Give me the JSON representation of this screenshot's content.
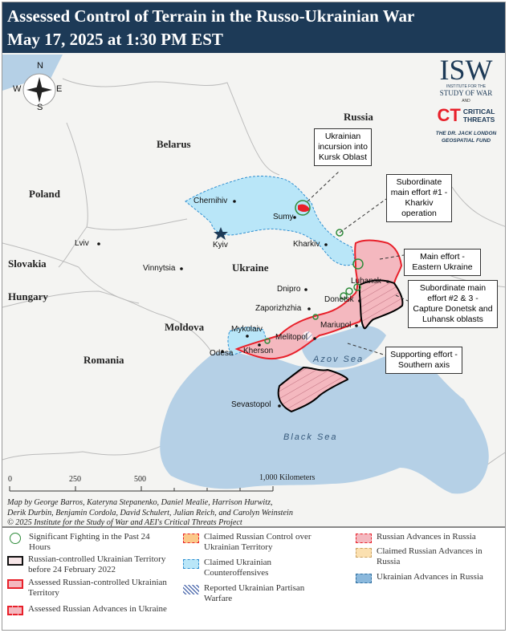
{
  "header": {
    "title_line1": "Assessed Control of Terrain in the Russo-Ukrainian War",
    "title_line2": "May 17, 2025 at 1:30 PM EST"
  },
  "compass": {
    "n": "N",
    "s": "S",
    "e": "E",
    "w": "W"
  },
  "logo": {
    "isw": "ISW",
    "isw_sub": "INSTITUTE FOR THE",
    "isw_name": "STUDY OF WAR",
    "and": "AND",
    "ct": "CT",
    "ct_name1": "CRITICAL",
    "ct_name2": "THREATS",
    "fund1": "THE DR. JACK LONDON",
    "fund2": "GEOSPATIAL FUND"
  },
  "countries": {
    "russia": "Russia",
    "belarus": "Belarus",
    "poland": "Poland",
    "ukraine": "Ukraine",
    "slovakia": "Slovakia",
    "hungary": "Hungary",
    "moldova": "Moldova",
    "romania": "Romania"
  },
  "cities": {
    "chernihiv": "Chernihiv",
    "kyiv": "Kyiv",
    "sumy": "Sumy",
    "kharkiv": "Kharkiv",
    "lviv": "Lviv",
    "vinnytsia": "Vinnytsia",
    "dnipro": "Dnipro",
    "luhansk": "Luhansk",
    "donetsk": "Donetsk",
    "zaporizhzhia": "Zaporizhzhia",
    "mykolaiv": "Mykolaiv",
    "mariupol": "Mariupol",
    "melitopol": "Melitopol",
    "odesa": "Odesa",
    "kherson": "Kherson",
    "sevastopol": "Sevastopol"
  },
  "seas": {
    "azov": "Azov Sea",
    "black": "Black Sea"
  },
  "callouts": {
    "kursk": "Ukrainian incursion into Kursk Oblast",
    "kharkiv_op": "Subordinate main effort #1 - Kharkiv operation",
    "eastern": "Main effort - Eastern Ukraine",
    "donetsk_luhansk": "Subordinate main effort #2 & 3 - Capture Donetsk and Luhansk oblasts",
    "southern": "Supporting effort - Southern axis"
  },
  "scale": {
    "t0": "0",
    "t250": "250",
    "t500": "500",
    "t1000": "1,000 Kilometers"
  },
  "credit": {
    "line1": "Map by George Barros, Kateryna Stepanenko, Daniel Mealie, Harrison Hurwitz,",
    "line2": "Derik Durbin, Benjamin Cordola, David Schulert, Julian Reich, and Carolyn Weinstein",
    "line3": "© 2025 Institute for the Study of War and AEI's Critical Threats Project"
  },
  "legend": [
    {
      "label": "Significant Fighting in the Past 24 Hours"
    },
    {
      "label": "Russian-controlled Ukrainian Territory before 24 February 2022"
    },
    {
      "label": "Assessed Russian-controlled Ukrainian Territory"
    },
    {
      "label": "Assessed Russian Advances in Ukraine"
    },
    {
      "label": "Claimed Russian Control over Ukrainian Territory"
    },
    {
      "label": "Claimed Ukrainian Counteroffensives"
    },
    {
      "label": "Reported Ukrainian Partisan Warfare"
    },
    {
      "label": "Russian Advances in Russia"
    },
    {
      "label": "Claimed Russian Advances in Russia"
    },
    {
      "label": "Ukrainian Advances in Russia"
    }
  ],
  "colors": {
    "header": "#1d3a57",
    "sea": "#b5d0e6",
    "russian_control": "#f4b8bf",
    "russian_border": "#e8202a",
    "ukr_counter": "#b9e6f8",
    "fighting": "#2e8b3a"
  }
}
